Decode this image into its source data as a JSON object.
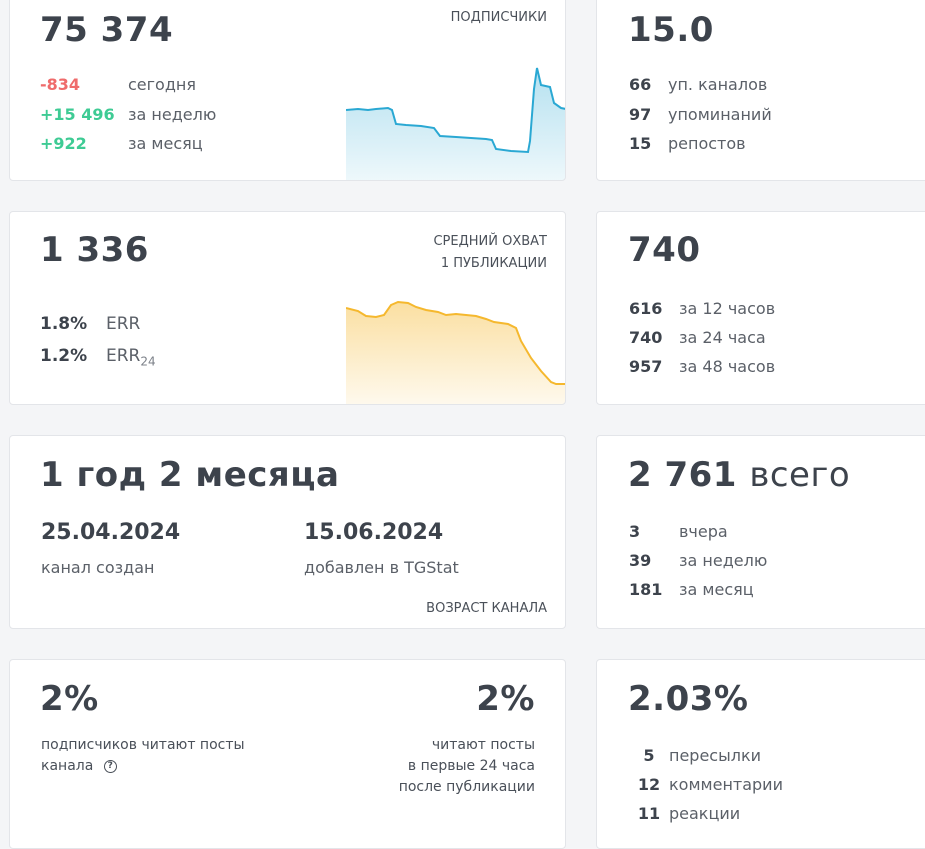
{
  "colors": {
    "negative": "#ef6b6b",
    "positive": "#3ecb94",
    "subscribers_line": "#2aa8d3",
    "reach_line": "#f5b82e"
  },
  "subscribers": {
    "value": "75 374",
    "label": "ПОДПИСЧИКИ",
    "rows": [
      {
        "value": "-834",
        "label": "сегодня"
      },
      {
        "value": "+15 496",
        "label": "за неделю"
      },
      {
        "value": "+922",
        "label": "за месяц"
      }
    ]
  },
  "citation": {
    "value": "15.0",
    "rows": [
      {
        "value": "66",
        "label": "уп. каналов"
      },
      {
        "value": "97",
        "label": "упоминаний"
      },
      {
        "value": "15",
        "label": "репостов"
      }
    ]
  },
  "reach": {
    "value": "1 336",
    "label_line1": "СРЕДНИЙ ОХВАТ",
    "label_line2": "1 ПУБЛИКАЦИИ",
    "err": {
      "value": "1.8%",
      "label": "ERR"
    },
    "err24": {
      "value": "1.2%",
      "label": "ERR",
      "sub": "24"
    }
  },
  "views": {
    "value": "740",
    "rows": [
      {
        "value": "616",
        "label": "за 12 часов"
      },
      {
        "value": "740",
        "label": "за 24 часа"
      },
      {
        "value": "957",
        "label": "за 48 часов"
      }
    ]
  },
  "age": {
    "value": "1 год 2 месяца",
    "created_date": "25.04.2024",
    "created_label": "канал создан",
    "added_date": "15.06.2024",
    "added_label": "добавлен в TGStat",
    "label": "ВОЗРАСТ КАНАЛА"
  },
  "posts": {
    "value": "2 761",
    "suffix": "всего",
    "rows": [
      {
        "value": "3",
        "label": "вчера"
      },
      {
        "value": "39",
        "label": "за неделю"
      },
      {
        "value": "181",
        "label": "за месяц"
      }
    ]
  },
  "readers": {
    "left_value": "2%",
    "left_label_line1": "подписчиков читают посты",
    "left_label_line2": "канала",
    "help_icon": "question-circle-icon",
    "right_value": "2%",
    "right_label_line1": "читают посты",
    "right_label_line2": "в первые 24 часа",
    "right_label_line3": "после публикации"
  },
  "engagement": {
    "value": "2.03%",
    "rows": [
      {
        "value": "5",
        "label": "пересылки"
      },
      {
        "value": "12",
        "label": "комментарии"
      },
      {
        "value": "11",
        "label": "реакции"
      }
    ]
  }
}
